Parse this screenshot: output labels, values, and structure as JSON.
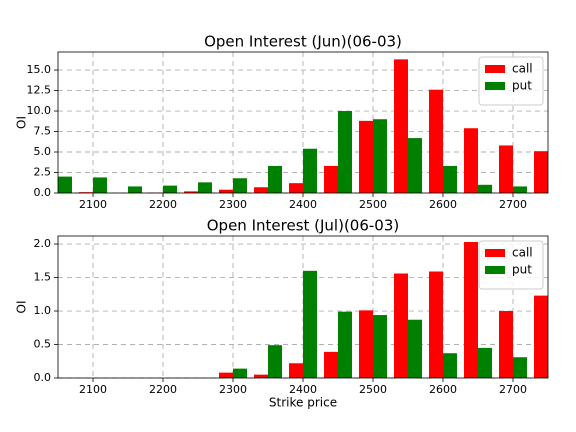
{
  "chart_data": [
    {
      "type": "bar",
      "title": "Open Interest (Jun)(06-03)",
      "y_label": "OI",
      "x": [
        2050,
        2100,
        2150,
        2200,
        2250,
        2300,
        2350,
        2400,
        2450,
        2500,
        2550,
        2600,
        2650,
        2700,
        2750
      ],
      "series": [
        {
          "name": "call",
          "color": "#ff0000",
          "values": [
            0,
            0.1,
            0,
            0.05,
            0.2,
            0.4,
            0.7,
            1.2,
            3.3,
            8.8,
            16.3,
            12.6,
            7.9,
            5.8,
            5.1
          ]
        },
        {
          "name": "put",
          "color": "#008000",
          "values": [
            2.0,
            1.9,
            0.8,
            0.9,
            1.3,
            1.8,
            3.3,
            5.4,
            10.0,
            9.0,
            6.7,
            3.3,
            1.0,
            0.8,
            null
          ]
        }
      ],
      "xlim": [
        2050,
        2750
      ],
      "xticks": [
        2100,
        2200,
        2300,
        2400,
        2500,
        2600,
        2700
      ],
      "ylim": [
        0,
        17.2
      ],
      "yticks": [
        {
          "value": 0,
          "label": "0.0"
        },
        {
          "value": 2.5,
          "label": "2.5"
        },
        {
          "value": 5,
          "label": "5.0"
        },
        {
          "value": 7.5,
          "label": "7.5"
        },
        {
          "value": 10,
          "label": "10.0"
        },
        {
          "value": 12.5,
          "label": "12.5"
        },
        {
          "value": 15,
          "label": "15.0"
        }
      ],
      "grid": true,
      "legend": "upper right"
    },
    {
      "type": "bar",
      "title": "Open Interest (Jul)(06-03)",
      "y_label": "OI",
      "x_label": "Strike price",
      "x": [
        2050,
        2100,
        2150,
        2200,
        2250,
        2300,
        2350,
        2400,
        2450,
        2500,
        2550,
        2600,
        2650,
        2700,
        2750
      ],
      "series": [
        {
          "name": "call",
          "color": "#ff0000",
          "values": [
            0,
            0,
            0,
            0,
            0,
            0.08,
            0.05,
            0.22,
            0.39,
            1.01,
            1.56,
            1.59,
            2.03,
            1.0,
            1.23
          ]
        },
        {
          "name": "put",
          "color": "#008000",
          "values": [
            0,
            0,
            0,
            0,
            0,
            0.14,
            0.49,
            1.6,
            0.99,
            0.94,
            0.87,
            0.37,
            0.45,
            0.31,
            null
          ]
        }
      ],
      "xlim": [
        2050,
        2750
      ],
      "xticks": [
        2100,
        2200,
        2300,
        2400,
        2500,
        2600,
        2700
      ],
      "ylim": [
        0,
        2.12
      ],
      "yticks": [
        {
          "value": 0,
          "label": "0.0"
        },
        {
          "value": 0.5,
          "label": "0.5"
        },
        {
          "value": 1,
          "label": "1.0"
        },
        {
          "value": 1.5,
          "label": "1.5"
        },
        {
          "value": 2,
          "label": "2.0"
        }
      ],
      "grid": true,
      "legend": "upper right"
    }
  ]
}
